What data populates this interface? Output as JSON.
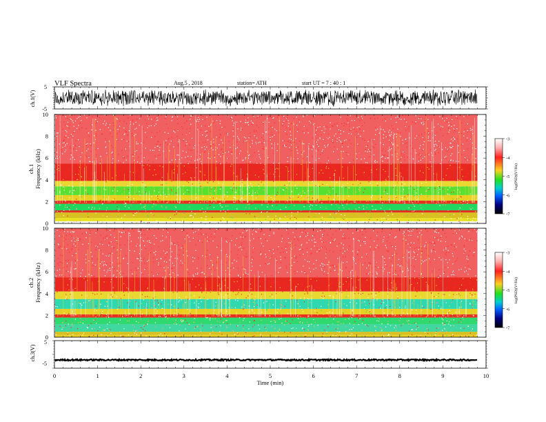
{
  "header": {
    "title": "VLF  Spectra",
    "date": "Aug.5  , 2018",
    "station": "station= ATH",
    "start": "start  UT  =   7  : 40 : 1"
  },
  "chart_data": [
    {
      "type": "line",
      "name": "ch1-waveform",
      "ylabel": "ch.1(V)",
      "yticks": [
        "5",
        "-5"
      ],
      "ylim": [
        -5,
        5
      ],
      "xlim": [
        0,
        10
      ],
      "data_extent_min": 9.8,
      "amplitude_v": [
        -4,
        4
      ],
      "color": "#000000"
    },
    {
      "type": "heatmap",
      "name": "ch1-spectrogram",
      "ylabel_line1": "ch.1",
      "ylabel_line2": "Frequency  (kHz)",
      "yticks": [
        "0",
        "2",
        "4",
        "6",
        "8",
        "10"
      ],
      "ylim_khz": [
        0,
        10
      ],
      "xlim_min": [
        0,
        10
      ],
      "data_extent_min": 9.8,
      "bands": [
        {
          "from_khz": 0.0,
          "to_khz": 0.2,
          "color": "#ffffff"
        },
        {
          "from_khz": 0.2,
          "to_khz": 0.5,
          "color": "#e8e020"
        },
        {
          "from_khz": 0.5,
          "to_khz": 1.0,
          "color": "#d8c020"
        },
        {
          "from_khz": 1.0,
          "to_khz": 1.2,
          "color": "#e03020"
        },
        {
          "from_khz": 1.2,
          "to_khz": 1.8,
          "color": "#20d860"
        },
        {
          "from_khz": 1.8,
          "to_khz": 2.1,
          "color": "#e83020"
        },
        {
          "from_khz": 2.1,
          "to_khz": 2.6,
          "color": "#e8d020"
        },
        {
          "from_khz": 2.6,
          "to_khz": 3.4,
          "color": "#58e030"
        },
        {
          "from_khz": 3.4,
          "to_khz": 3.9,
          "color": "#e8d830"
        },
        {
          "from_khz": 3.9,
          "to_khz": 5.5,
          "color": "#e82820"
        },
        {
          "from_khz": 5.5,
          "to_khz": 10.0,
          "color": "#f06060"
        }
      ],
      "colorbar": {
        "label": "log(PSD)(V²/Hz)",
        "ticks": [
          "-3",
          "-4",
          "-5",
          "-6",
          "-7"
        ],
        "range": [
          -7,
          -3
        ]
      }
    },
    {
      "type": "heatmap",
      "name": "ch2-spectrogram",
      "ylabel_line1": "ch.2",
      "ylabel_line2": "Frequency  (kHz)",
      "yticks": [
        "0",
        "2",
        "4",
        "6",
        "8",
        "10"
      ],
      "ylim_khz": [
        0,
        10
      ],
      "xlim_min": [
        0,
        10
      ],
      "data_extent_min": 9.8,
      "bands": [
        {
          "from_khz": 0.0,
          "to_khz": 0.2,
          "color": "#e8d020"
        },
        {
          "from_khz": 0.2,
          "to_khz": 0.5,
          "color": "#d8c020"
        },
        {
          "from_khz": 0.5,
          "to_khz": 1.2,
          "color": "#40d8a0"
        },
        {
          "from_khz": 1.2,
          "to_khz": 1.8,
          "color": "#30d870"
        },
        {
          "from_khz": 1.8,
          "to_khz": 2.1,
          "color": "#e83020"
        },
        {
          "from_khz": 2.1,
          "to_khz": 2.6,
          "color": "#e8d020"
        },
        {
          "from_khz": 2.6,
          "to_khz": 3.5,
          "color": "#30d8b0"
        },
        {
          "from_khz": 3.5,
          "to_khz": 4.2,
          "color": "#e8d830"
        },
        {
          "from_khz": 4.2,
          "to_khz": 5.5,
          "color": "#e82820"
        },
        {
          "from_khz": 5.5,
          "to_khz": 10.0,
          "color": "#f06060"
        }
      ],
      "colorbar": {
        "label": "log(PSD)(V²/Hz)",
        "ticks": [
          "-3",
          "-4",
          "-5",
          "-6",
          "-7"
        ],
        "range": [
          -7,
          -3
        ]
      }
    },
    {
      "type": "line",
      "name": "ch3-waveform",
      "ylabel": "ch.3(V)",
      "yticks": [
        "5",
        "-5"
      ],
      "ylim": [
        -5,
        5
      ],
      "xlim": [
        0,
        10
      ],
      "data_extent_min": 9.8,
      "level_v": -2,
      "color": "#000000",
      "xlabel": "Time  (min)",
      "xticks": [
        "0",
        "1",
        "2",
        "3",
        "4",
        "5",
        "6",
        "7",
        "8",
        "9",
        "10"
      ]
    }
  ],
  "colors": {
    "colorbar_stops": [
      "#ffffff",
      "#ff2020",
      "#ffd020",
      "#20e020",
      "#00d0d0",
      "#0060ff",
      "#000080",
      "#000000"
    ]
  }
}
